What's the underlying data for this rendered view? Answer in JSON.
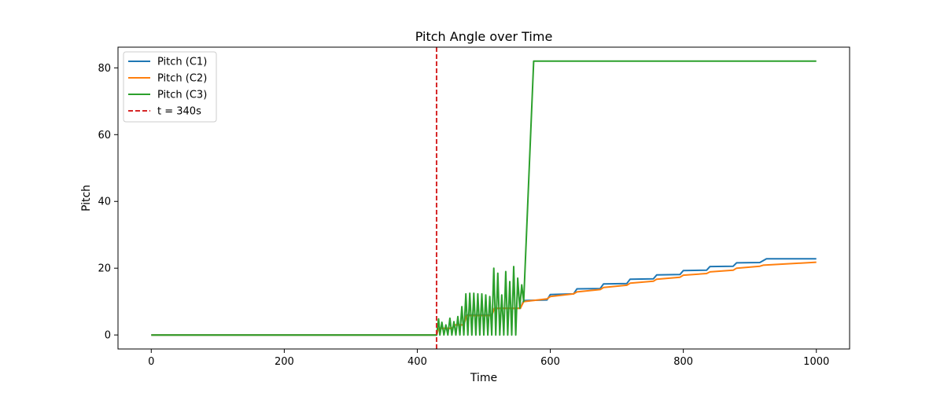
{
  "chart_data": {
    "type": "line",
    "title": "Pitch Angle over Time",
    "xlabel": "Time",
    "ylabel": "Pitch",
    "xlim": [
      -50,
      1050
    ],
    "ylim": [
      -4.2,
      86.2
    ],
    "xticks": [
      0,
      200,
      400,
      600,
      800,
      1000
    ],
    "yticks": [
      0,
      20,
      40,
      60,
      80
    ],
    "grid": false,
    "legend_position": "top-left",
    "series": [
      {
        "name": "Pitch (C1)",
        "color": "#1f77b4",
        "x": [
          0,
          429,
          432,
          452,
          457,
          470,
          474,
          512,
          516,
          555,
          560,
          595,
          600,
          635,
          640,
          675,
          680,
          715,
          720,
          755,
          760,
          795,
          800,
          835,
          840,
          875,
          880,
          915,
          925,
          1000
        ],
        "y": [
          0,
          0,
          2,
          2,
          3,
          3,
          6,
          6,
          8,
          8,
          10.3,
          10.5,
          12.1,
          12.3,
          13.8,
          13.9,
          15.3,
          15.4,
          16.7,
          16.8,
          18,
          18.1,
          19.3,
          19.4,
          20.5,
          20.6,
          21.6,
          21.7,
          22.8,
          22.8
        ]
      },
      {
        "name": "Pitch (C2)",
        "color": "#ff7f0e",
        "x": [
          0,
          429,
          432,
          452,
          457,
          470,
          474,
          512,
          516,
          555,
          560,
          595,
          600,
          635,
          640,
          675,
          680,
          715,
          720,
          755,
          760,
          795,
          800,
          835,
          840,
          875,
          880,
          915,
          920,
          1000
        ],
        "y": [
          0,
          0,
          2,
          2,
          3,
          3,
          5.8,
          5.8,
          8,
          8,
          10,
          10.8,
          11.5,
          12.3,
          12.9,
          13.6,
          14.2,
          14.9,
          15.5,
          16.1,
          16.7,
          17.3,
          17.9,
          18.4,
          18.9,
          19.4,
          20,
          20.6,
          20.9,
          21.8
        ]
      },
      {
        "name": "Pitch (C3)",
        "color": "#2ca02c",
        "x": [
          0,
          429,
          432,
          434,
          437,
          440,
          443,
          446,
          449,
          452,
          455,
          458,
          461,
          464,
          467,
          470,
          473,
          476,
          479,
          482,
          485,
          488,
          491,
          494,
          497,
          500,
          503,
          506,
          509,
          512,
          515,
          518,
          521,
          524,
          527,
          530,
          533,
          536,
          539,
          542,
          545,
          548,
          551,
          554,
          557,
          560,
          575,
          1000
        ],
        "y": [
          0,
          0,
          4.8,
          0,
          3.8,
          0,
          3,
          0,
          5,
          0,
          4,
          0,
          5.5,
          0,
          8.5,
          0,
          12.3,
          0,
          12.5,
          0,
          12.5,
          0,
          12.3,
          0,
          12.3,
          0,
          12,
          0,
          11.5,
          0,
          20,
          0,
          18.5,
          0,
          12,
          0,
          19,
          0,
          16,
          0,
          20.5,
          0,
          17,
          8,
          15,
          10,
          82,
          82
        ]
      },
      {
        "name": "t = 340s",
        "color": "#d62728",
        "dashed": true,
        "vline_x": 429
      }
    ]
  }
}
